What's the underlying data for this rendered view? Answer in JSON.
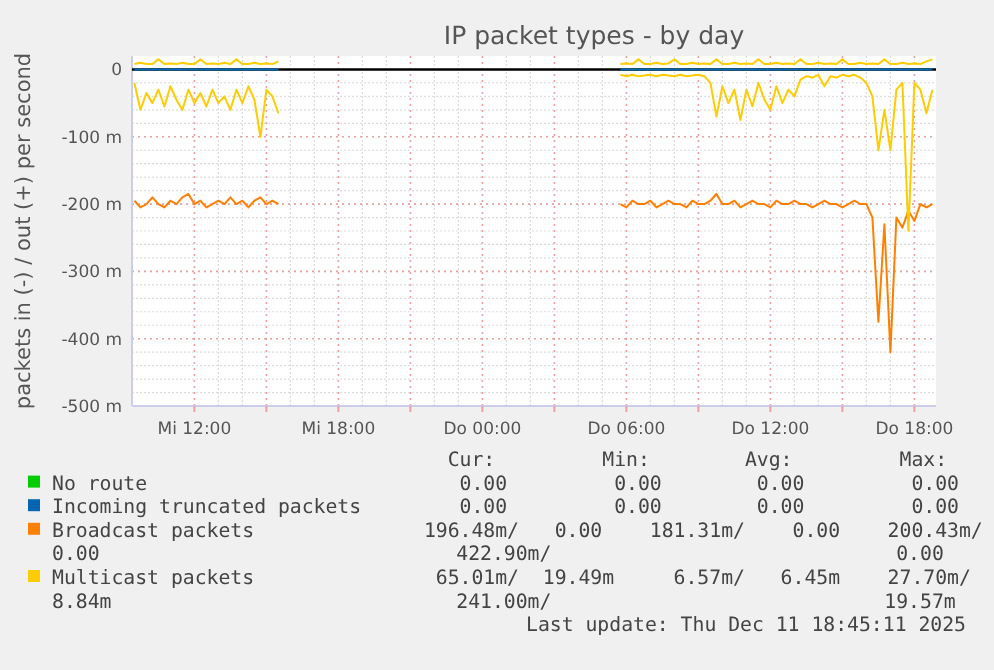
{
  "chart_data": {
    "type": "line",
    "title": "IP packet types - by day",
    "ylabel": "packets in (-) / out (+) per second",
    "x": [
      "2025-12-10T09:30",
      "2025-12-10T09:45",
      "2025-12-10T10:00",
      "2025-12-10T10:15",
      "2025-12-10T10:30",
      "2025-12-10T10:45",
      "2025-12-10T11:00",
      "2025-12-10T11:15",
      "2025-12-10T11:30",
      "2025-12-10T11:45",
      "2025-12-10T12:00",
      "2025-12-10T12:15",
      "2025-12-10T12:30",
      "2025-12-10T12:45",
      "2025-12-10T13:00",
      "2025-12-10T13:15",
      "2025-12-10T13:30",
      "2025-12-10T13:45",
      "2025-12-10T14:00",
      "2025-12-10T14:15",
      "2025-12-10T14:30",
      "2025-12-10T14:45",
      "2025-12-10T15:00",
      "2025-12-10T15:15",
      "2025-12-10T15:30",
      "2025-12-11T05:45",
      "2025-12-11T06:00",
      "2025-12-11T06:15",
      "2025-12-11T06:30",
      "2025-12-11T06:45",
      "2025-12-11T07:00",
      "2025-12-11T07:15",
      "2025-12-11T07:30",
      "2025-12-11T07:45",
      "2025-12-11T08:00",
      "2025-12-11T08:15",
      "2025-12-11T08:30",
      "2025-12-11T08:45",
      "2025-12-11T09:00",
      "2025-12-11T09:15",
      "2025-12-11T09:30",
      "2025-12-11T09:45",
      "2025-12-11T10:00",
      "2025-12-11T10:15",
      "2025-12-11T10:30",
      "2025-12-11T10:45",
      "2025-12-11T11:00",
      "2025-12-11T11:15",
      "2025-12-11T11:30",
      "2025-12-11T11:45",
      "2025-12-11T12:00",
      "2025-12-11T12:15",
      "2025-12-11T12:30",
      "2025-12-11T12:45",
      "2025-12-11T13:00",
      "2025-12-11T13:15",
      "2025-12-11T13:30",
      "2025-12-11T13:45",
      "2025-12-11T14:00",
      "2025-12-11T14:15",
      "2025-12-11T14:30",
      "2025-12-11T14:45",
      "2025-12-11T15:00",
      "2025-12-11T15:15",
      "2025-12-11T15:30",
      "2025-12-11T15:45",
      "2025-12-11T16:00",
      "2025-12-11T16:15",
      "2025-12-11T16:30",
      "2025-12-11T16:45",
      "2025-12-11T17:00",
      "2025-12-11T17:15",
      "2025-12-11T17:30",
      "2025-12-11T17:45",
      "2025-12-11T18:00",
      "2025-12-11T18:15",
      "2025-12-11T18:30",
      "2025-12-11T18:45"
    ],
    "xlim": [
      "2025-12-10T09:24",
      "2025-12-11T18:54"
    ],
    "xticks": [
      {
        "value": "2025-12-10T12:00",
        "label": "Mi 12:00"
      },
      {
        "value": "2025-12-10T15:00",
        "label": null
      },
      {
        "value": "2025-12-10T18:00",
        "label": "Mi 18:00"
      },
      {
        "value": "2025-12-10T21:00",
        "label": null
      },
      {
        "value": "2025-12-11T00:00",
        "label": "Do 00:00"
      },
      {
        "value": "2025-12-11T03:00",
        "label": null
      },
      {
        "value": "2025-12-11T06:00",
        "label": "Do 06:00"
      },
      {
        "value": "2025-12-11T09:00",
        "label": null
      },
      {
        "value": "2025-12-11T12:00",
        "label": "Do 12:00"
      },
      {
        "value": "2025-12-11T15:00",
        "label": null
      },
      {
        "value": "2025-12-11T18:00",
        "label": "Do 18:00"
      }
    ],
    "ylim": [
      -500,
      20
    ],
    "yticks": [
      {
        "value": -500,
        "label": "-500 m"
      },
      {
        "value": -400,
        "label": "-400 m"
      },
      {
        "value": -300,
        "label": "-300 m"
      },
      {
        "value": -200,
        "label": "-200 m"
      },
      {
        "value": -100,
        "label": "-100 m"
      },
      0
    ],
    "grid": true,
    "legend": "bottom",
    "ref_lines": [
      {
        "axis": "y",
        "value": 0,
        "color": "#000000"
      }
    ],
    "series": [
      {
        "name": "Broadcast packets",
        "color": "#ff8000",
        "values": [
          -195,
          -205,
          -200,
          -190,
          -200,
          -205,
          -195,
          -200,
          -190,
          -185,
          -200,
          -195,
          -205,
          -200,
          -195,
          -200,
          -190,
          -200,
          -195,
          -205,
          -195,
          -190,
          -200,
          -195,
          -200,
          -200,
          -205,
          -195,
          -200,
          -200,
          -195,
          -205,
          -200,
          -195,
          -200,
          -200,
          -205,
          -195,
          -200,
          -200,
          -195,
          -185,
          -200,
          -200,
          -195,
          -205,
          -200,
          -195,
          -200,
          -200,
          -205,
          -195,
          -200,
          -200,
          -195,
          -200,
          -200,
          -205,
          -200,
          -195,
          -200,
          -200,
          -205,
          -200,
          -195,
          -200,
          -200,
          -220,
          -375,
          -230,
          -420,
          -220,
          -235,
          -210,
          -225,
          -200,
          -205,
          -200
        ]
      },
      {
        "color": "#ffcc00",
        "values": [
          -20,
          -60,
          -35,
          -50,
          -30,
          -55,
          -25,
          -45,
          -60,
          -30,
          -50,
          -35,
          -55,
          -30,
          -50,
          -40,
          -60,
          -30,
          -50,
          -25,
          -45,
          -100,
          -30,
          -40,
          -65,
          -8,
          -10,
          -8,
          -10,
          -9,
          -8,
          -10,
          -8,
          -9,
          -10,
          -8,
          -10,
          -9,
          -8,
          -10,
          -20,
          -70,
          -25,
          -50,
          -30,
          -75,
          -30,
          -55,
          -20,
          -45,
          -60,
          -25,
          -50,
          -30,
          -40,
          -15,
          -10,
          -12,
          -8,
          -25,
          -10,
          -12,
          -8,
          -10,
          -8,
          -12,
          -20,
          -40,
          -120,
          -60,
          -120,
          -30,
          -20,
          -240,
          -20,
          -30,
          -65,
          -30
        ]
      },
      {
        "name": "Multicast packets",
        "color": "#ffcc00",
        "values": [
          8,
          10,
          8,
          8,
          15,
          8,
          9,
          8,
          10,
          8,
          8,
          15,
          8,
          9,
          8,
          10,
          8,
          15,
          8,
          8,
          10,
          8,
          9,
          8,
          12,
          8,
          9,
          8,
          15,
          8,
          8,
          10,
          8,
          9,
          15,
          8,
          8,
          10,
          8,
          9,
          8,
          15,
          8,
          8,
          10,
          8,
          9,
          8,
          15,
          8,
          8,
          10,
          8,
          9,
          8,
          15,
          8,
          8,
          10,
          8,
          9,
          8,
          15,
          8,
          8,
          10,
          8,
          9,
          8,
          15,
          8,
          8,
          10,
          8,
          9,
          8,
          12,
          15
        ]
      },
      {
        "name": "No route",
        "color": "#00cc00",
        "values": [
          null,
          null,
          null,
          null,
          null,
          null,
          null,
          null,
          null,
          null,
          null,
          null,
          null,
          null,
          null,
          null,
          null,
          null,
          null,
          null,
          null,
          null,
          null,
          null,
          null,
          null,
          null,
          null,
          null,
          null,
          null,
          null,
          null,
          null,
          null,
          null,
          null,
          null,
          null,
          null,
          null,
          null,
          null,
          null,
          null,
          null,
          null,
          null,
          null,
          null,
          null,
          null,
          null,
          null,
          null,
          null,
          null,
          null,
          null,
          null,
          null,
          null,
          null,
          null,
          null,
          null,
          null,
          null,
          null,
          null,
          null,
          null,
          null,
          null,
          null,
          null,
          null,
          null
        ]
      },
      {
        "name": "Incoming truncated packets",
        "color": "#0066b3",
        "values": [
          0,
          0,
          0,
          0,
          0,
          0,
          0,
          0,
          0,
          0,
          0,
          0,
          0,
          0,
          0,
          0,
          0,
          0,
          0,
          0,
          0,
          0,
          0,
          0,
          0,
          0,
          0,
          0,
          0,
          0,
          0,
          0,
          0,
          0,
          0,
          0,
          0,
          0,
          0,
          0,
          0,
          0,
          0,
          0,
          0,
          0,
          0,
          0,
          0,
          0,
          0,
          0,
          0,
          0,
          0,
          0,
          0,
          0,
          0,
          0,
          0,
          0,
          0,
          0,
          0,
          0,
          0,
          0,
          0,
          0,
          0,
          0,
          0,
          0,
          0,
          0,
          0,
          0
        ]
      }
    ],
    "annotations": [
      "   Cur:         Min:        Avg:         Max:",
      "    0.00         0.00        0.00         0.00",
      "    0.00         0.00        0.00         0.00",
      " 196.48m/   0.00    181.31m/    0.00    200.43m/",
      "0.00                              422.90m/                             0.00",
      "  65.01m/  19.49m     6.57m/   6.45m    27.70m/",
      "8.84m                             241.00m/                            19.57m",
      "Last update: Thu Dec 11 18:45:11 2025"
    ]
  }
}
